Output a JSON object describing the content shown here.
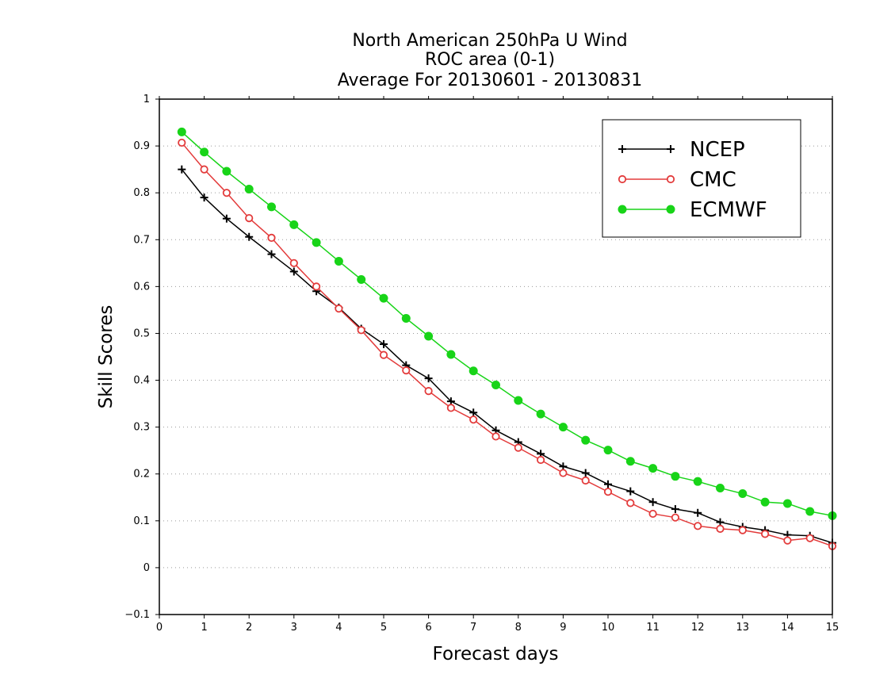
{
  "chart_data": {
    "type": "line",
    "title": [
      "North American 250hPa U Wind",
      "ROC area (0-1)",
      "Average For 20130601 - 20130831"
    ],
    "xlabel": "Forecast days",
    "ylabel": "Skill Scores",
    "xlim": [
      0,
      15
    ],
    "ylim": [
      -0.1,
      1
    ],
    "xticks": [
      0,
      1,
      2,
      3,
      4,
      5,
      6,
      7,
      8,
      9,
      10,
      11,
      12,
      13,
      14,
      15
    ],
    "yticks": [
      -0.1,
      0,
      0.1,
      0.2,
      0.3,
      0.4,
      0.5,
      0.6,
      0.7,
      0.8,
      0.9,
      1
    ],
    "ytick_labels": [
      "−0.1",
      "0",
      "0.1",
      "0.2",
      "0.3",
      "0.4",
      "0.5",
      "0.6",
      "0.7",
      "0.8",
      "0.9",
      "1"
    ],
    "grid": "horizontal dotted",
    "legend_position": "top-right",
    "x": [
      0.5,
      1,
      1.5,
      2,
      2.5,
      3,
      3.5,
      4,
      4.5,
      5,
      5.5,
      6,
      6.5,
      7,
      7.5,
      8,
      8.5,
      9,
      9.5,
      10,
      10.5,
      11,
      11.5,
      12,
      12.5,
      13,
      13.5,
      14,
      14.5,
      15
    ],
    "series": [
      {
        "name": "NCEP",
        "color": "#000000",
        "marker": "plus",
        "values": [
          0.85,
          0.79,
          0.745,
          0.706,
          0.669,
          0.632,
          0.59,
          0.555,
          0.51,
          0.477,
          0.432,
          0.404,
          0.355,
          0.331,
          0.293,
          0.268,
          0.243,
          0.216,
          0.202,
          0.178,
          0.163,
          0.14,
          0.125,
          0.117,
          0.097,
          0.087,
          0.08,
          0.07,
          0.068,
          0.053
        ]
      },
      {
        "name": "CMC",
        "color": "#e33b3b",
        "marker": "open-circle",
        "values": [
          0.907,
          0.85,
          0.8,
          0.746,
          0.704,
          0.65,
          0.6,
          0.553,
          0.507,
          0.454,
          0.421,
          0.377,
          0.341,
          0.316,
          0.28,
          0.256,
          0.23,
          0.202,
          0.186,
          0.162,
          0.138,
          0.115,
          0.107,
          0.089,
          0.083,
          0.08,
          0.072,
          0.058,
          0.063,
          0.046
        ]
      },
      {
        "name": "ECMWF",
        "color": "#18d418",
        "marker": "filled-circle",
        "values": [
          0.93,
          0.887,
          0.846,
          0.808,
          0.77,
          0.732,
          0.694,
          0.654,
          0.615,
          0.575,
          0.532,
          0.494,
          0.455,
          0.42,
          0.39,
          0.357,
          0.328,
          0.3,
          0.272,
          0.251,
          0.227,
          0.212,
          0.195,
          0.184,
          0.17,
          0.158,
          0.14,
          0.137,
          0.12,
          0.111
        ]
      }
    ]
  }
}
